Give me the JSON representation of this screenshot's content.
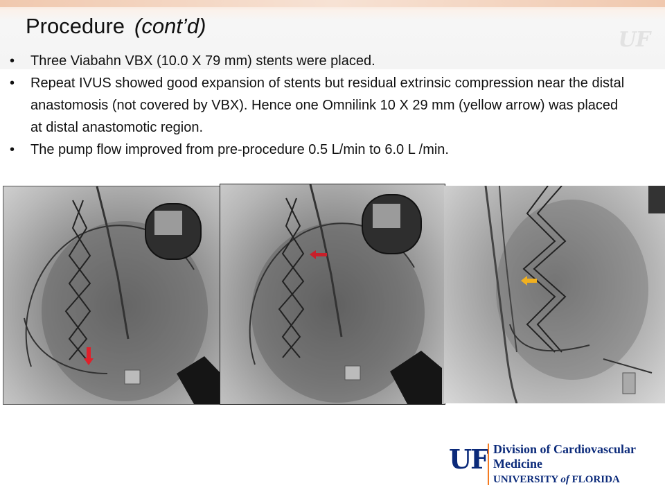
{
  "slide": {
    "title": "Procedure",
    "title_suffix": "(cont’d)",
    "bullets": [
      "Three Viabahn VBX (10.0 X 79 mm) stents were placed.",
      "Repeat IVUS showed good expansion of stents but residual extrinsic compression near the distal anastomosis (not covered by VBX). Hence one Omnilink 10 X 29 mm (yellow arrow) was placed at distal anastomotic region.",
      "The pump flow improved from pre-procedure 0.5 L/min to 6.0 L /min."
    ]
  },
  "images": [
    {
      "kind": "fluoroscopy",
      "arrow_color": "#e0202a",
      "arrow_direction": "down"
    },
    {
      "kind": "fluoroscopy",
      "arrow_color": "#c8202a",
      "arrow_direction": "left"
    },
    {
      "kind": "fluoroscopy",
      "arrow_color": "#f0b020",
      "arrow_direction": "left"
    }
  ],
  "watermark": {
    "text": "UF"
  },
  "logo": {
    "mark": "UF",
    "division_line1": "Division of Cardiovascular",
    "division_line2": "Medicine",
    "university": "UNIVERSITY",
    "university_of": "of",
    "university_state": "FLORIDA",
    "primary_color": "#0b2a7a",
    "accent_color": "#f47a20"
  }
}
